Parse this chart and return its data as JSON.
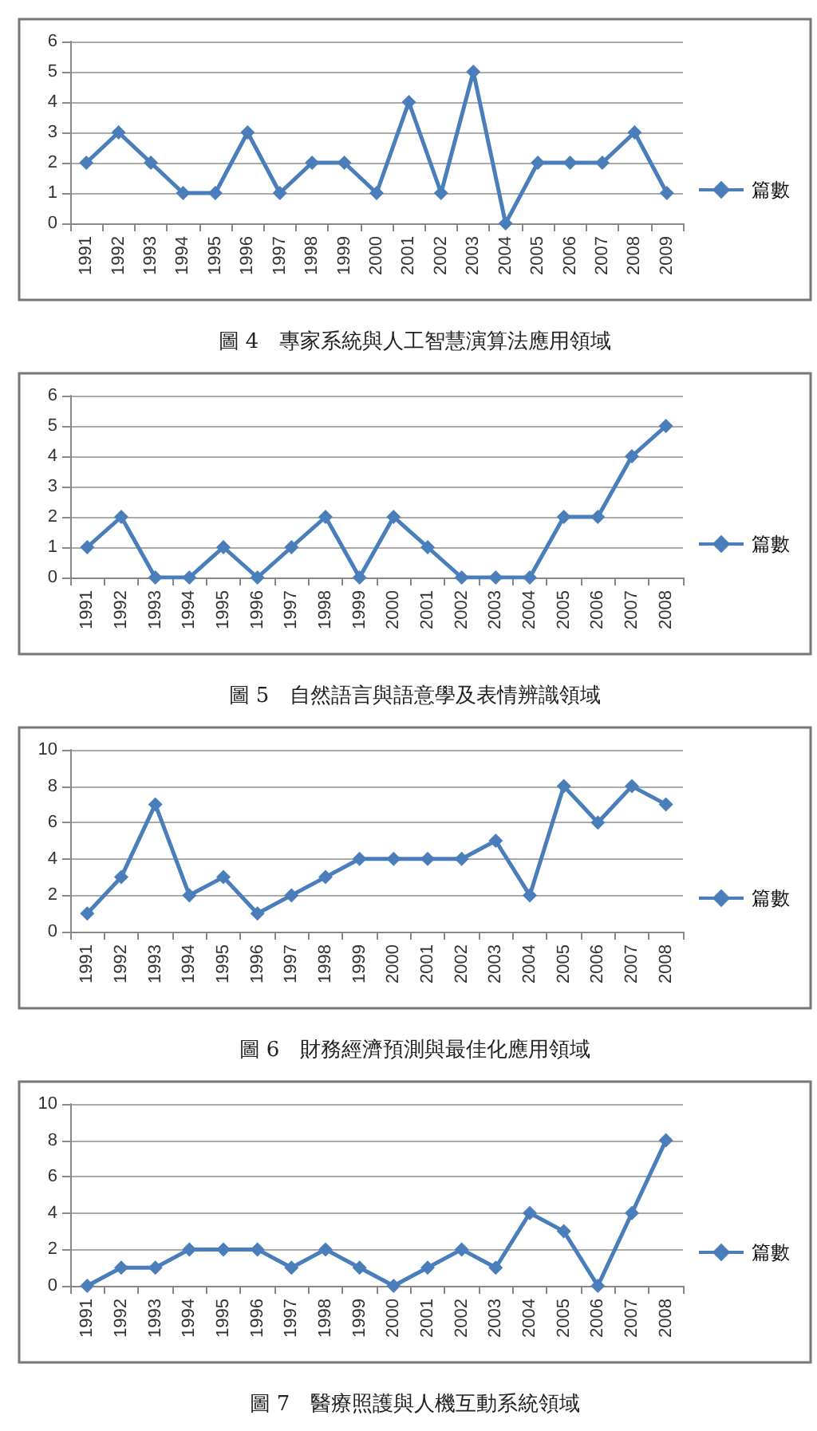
{
  "chart_data": [
    {
      "type": "line",
      "title": "圖 4　專家系統與人工智慧演算法應用領域",
      "categories": [
        "1991",
        "1992",
        "1993",
        "1994",
        "1995",
        "1996",
        "1997",
        "1998",
        "1999",
        "2000",
        "2001",
        "2002",
        "2003",
        "2004",
        "2005",
        "2006",
        "2007",
        "2008",
        "2009"
      ],
      "series": [
        {
          "name": "篇數",
          "color": "#4a7ebb",
          "values": [
            2,
            3,
            2,
            1,
            1,
            3,
            1,
            2,
            2,
            1,
            4,
            1,
            5,
            0,
            2,
            2,
            2,
            3,
            1
          ]
        }
      ],
      "ylim": [
        0,
        6
      ],
      "yticks": [
        0,
        1,
        2,
        3,
        4,
        5,
        6
      ],
      "grid": "y",
      "legend": "right",
      "marker": "diamond",
      "line_style": "solid"
    },
    {
      "type": "line",
      "title": "圖 5　自然語言與語意學及表情辨識領域",
      "categories": [
        "1991",
        "1992",
        "1993",
        "1994",
        "1995",
        "1996",
        "1997",
        "1998",
        "1999",
        "2000",
        "2001",
        "2002",
        "2003",
        "2004",
        "2005",
        "2006",
        "2007",
        "2008"
      ],
      "series": [
        {
          "name": "篇數",
          "color": "#4a7ebb",
          "values": [
            1,
            2,
            0,
            0,
            1,
            0,
            1,
            2,
            0,
            2,
            1,
            0,
            0,
            0,
            2,
            2,
            4,
            5
          ]
        }
      ],
      "ylim": [
        0,
        6
      ],
      "yticks": [
        0,
        1,
        2,
        3,
        4,
        5,
        6
      ],
      "grid": "y",
      "legend": "right",
      "marker": "diamond",
      "line_style": "solid"
    },
    {
      "type": "line",
      "title": "圖 6　財務經濟預測與最佳化應用領域",
      "categories": [
        "1991",
        "1992",
        "1993",
        "1994",
        "1995",
        "1996",
        "1997",
        "1998",
        "1999",
        "2000",
        "2001",
        "2002",
        "2003",
        "2004",
        "2005",
        "2006",
        "2007",
        "2008"
      ],
      "series": [
        {
          "name": "篇數",
          "color": "#4a7ebb",
          "values": [
            1,
            3,
            7,
            2,
            3,
            1,
            2,
            3,
            4,
            4,
            4,
            4,
            5,
            2,
            8,
            6,
            8,
            7
          ]
        }
      ],
      "ylim": [
        0,
        10
      ],
      "yticks": [
        0,
        2,
        4,
        6,
        8,
        10
      ],
      "grid": "y",
      "legend": "right",
      "marker": "diamond",
      "line_style": "solid"
    },
    {
      "type": "line",
      "title": "圖 7　醫療照護與人機互動系統領域",
      "categories": [
        "1991",
        "1992",
        "1993",
        "1994",
        "1995",
        "1996",
        "1997",
        "1998",
        "1999",
        "2000",
        "2001",
        "2002",
        "2003",
        "2004",
        "2005",
        "2006",
        "2007",
        "2008"
      ],
      "series": [
        {
          "name": "篇數",
          "color": "#4a7ebb",
          "values": [
            0,
            1,
            1,
            2,
            2,
            2,
            1,
            2,
            1,
            0,
            1,
            2,
            1,
            4,
            3,
            0,
            4,
            8
          ]
        }
      ],
      "ylim": [
        0,
        10
      ],
      "yticks": [
        0,
        2,
        4,
        6,
        8,
        10
      ],
      "grid": "y",
      "legend": "right",
      "marker": "diamond",
      "line_style": "solid"
    }
  ]
}
